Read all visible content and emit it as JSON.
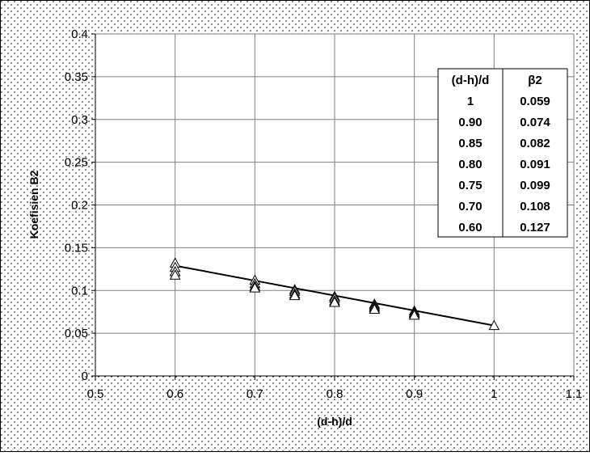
{
  "chart_data": {
    "type": "scatter",
    "title": "",
    "xlabel": "(d-h)/d",
    "ylabel": "Koefisien B2",
    "xlim": [
      0.5,
      1.1
    ],
    "ylim": [
      0,
      0.4
    ],
    "xticks": [
      "0.5",
      "0.6",
      "0.7",
      "0.8",
      "0.9",
      "1",
      "1.1"
    ],
    "yticks": [
      "0",
      "0.05",
      "0.1",
      "0.15",
      "0.2",
      "0.25",
      "0.3",
      "0.35",
      "0.4"
    ],
    "grid": true,
    "series": [
      {
        "marker": "triangle",
        "x": [
          0.6,
          0.6,
          0.6,
          0.6,
          0.7,
          0.7,
          0.7,
          0.7,
          0.75,
          0.75,
          0.75,
          0.75,
          0.8,
          0.8,
          0.8,
          0.8,
          0.85,
          0.85,
          0.85,
          0.85,
          0.9,
          0.9,
          0.9,
          0.9,
          1.0
        ],
        "y": [
          0.132,
          0.127,
          0.122,
          0.118,
          0.112,
          0.108,
          0.105,
          0.103,
          0.101,
          0.099,
          0.096,
          0.094,
          0.093,
          0.091,
          0.088,
          0.086,
          0.084,
          0.082,
          0.08,
          0.078,
          0.076,
          0.074,
          0.073,
          0.071,
          0.059
        ]
      },
      {
        "type": "line",
        "x": [
          0.6,
          1.0
        ],
        "y": [
          0.129,
          0.059
        ]
      }
    ],
    "table": {
      "headers": [
        "(d-h)/d",
        "β2"
      ],
      "rows": [
        [
          "1",
          "0.059"
        ],
        [
          "0.90",
          "0.074"
        ],
        [
          "0.85",
          "0.082"
        ],
        [
          "0.80",
          "0.091"
        ],
        [
          "0.75",
          "0.099"
        ],
        [
          "0.70",
          "0.108"
        ],
        [
          "0.60",
          "0.127"
        ]
      ]
    }
  }
}
